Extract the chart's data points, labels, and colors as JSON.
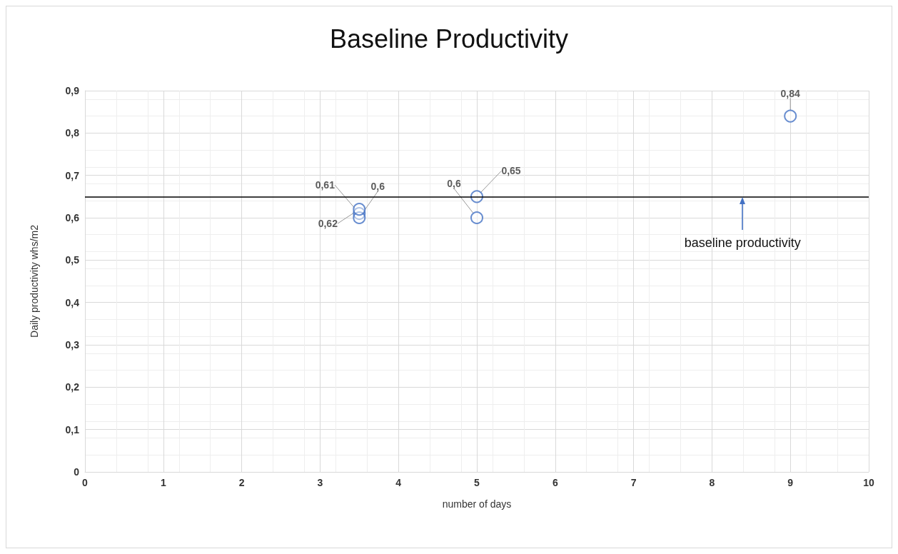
{
  "chart_data": {
    "type": "scatter",
    "title": "Baseline Productivity",
    "xlabel": "number of days",
    "ylabel": "Daily productivity whs/m2",
    "x": [
      3.5,
      3.5,
      3.5,
      5,
      5,
      9
    ],
    "series": [
      {
        "color": "#4472c4",
        "values": [
          0.61,
          0.6,
          0.62,
          0.6,
          0.65,
          0.84
        ],
        "value_labels": [
          "0,61",
          "0,6",
          "0,62",
          "0,6",
          "0,65",
          "0,84"
        ]
      }
    ],
    "xlim": [
      0,
      10
    ],
    "xticks": [
      0,
      1,
      2,
      3,
      4,
      5,
      6,
      7,
      8,
      9,
      10
    ],
    "ylim": [
      0,
      0.9
    ],
    "yticks": [
      0,
      {
        "value": 0.1,
        "label": "0,1"
      },
      {
        "value": 0.2,
        "label": "0,2"
      },
      {
        "value": 0.3,
        "label": "0,3"
      },
      {
        "value": 0.4,
        "label": "0,4"
      },
      {
        "value": 0.5,
        "label": "0,5"
      },
      {
        "value": 0.6,
        "label": "0,6"
      },
      {
        "value": 0.7,
        "label": "0,7"
      },
      {
        "value": 0.8,
        "label": "0,8"
      },
      {
        "value": 0.9,
        "label": "0,9"
      }
    ],
    "ref_lines": [
      {
        "axis": "y",
        "value": 0.65,
        "label": "baseline productivity",
        "color": "#000000"
      }
    ],
    "grid": true,
    "marker": "circle"
  }
}
